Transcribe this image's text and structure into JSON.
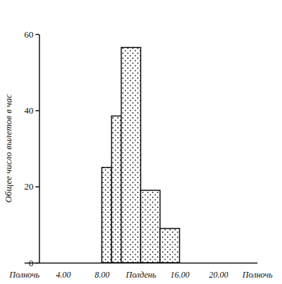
{
  "chart_data": {
    "type": "histogram",
    "y_label": "Общее число вылетов в час",
    "bins": [
      8,
      9,
      10,
      12,
      14,
      16
    ],
    "values": [
      25,
      38.5,
      56.5,
      19,
      9
    ],
    "xlim": [
      0,
      24
    ],
    "xticks": [
      {
        "value": 0,
        "label": "Полночь"
      },
      {
        "value": 4,
        "label": "4.00"
      },
      {
        "value": 8,
        "label": "8.00"
      },
      {
        "value": 12,
        "label": "Полдень"
      },
      {
        "value": 16,
        "label": "16.00"
      },
      {
        "value": 20,
        "label": "20.00"
      },
      {
        "value": 24,
        "label": "Полночь"
      }
    ],
    "ylim": [
      0,
      60
    ],
    "yticks": [
      0,
      20,
      40,
      60
    ],
    "grid": false
  }
}
